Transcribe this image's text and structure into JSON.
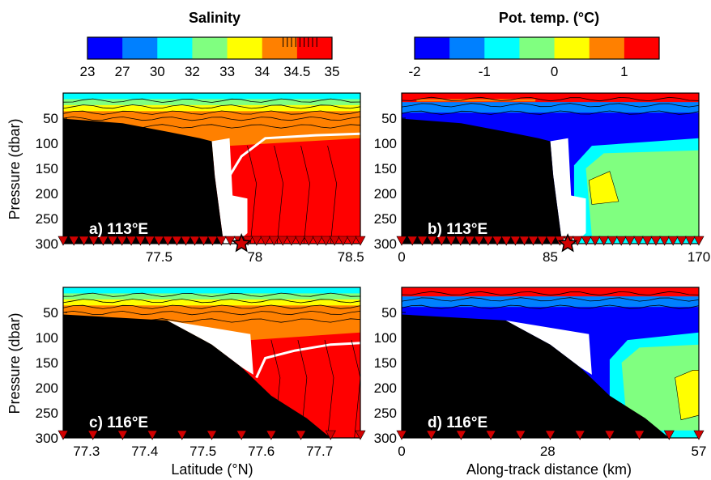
{
  "colorbars": [
    {
      "title": "Salinity",
      "levels": [
        "23",
        "27",
        "30",
        "32",
        "33",
        "34",
        "34.5",
        "35"
      ],
      "colors": [
        "#0000ff",
        "#0080ff",
        "#00ffff",
        "#80ff80",
        "#ffff00",
        "#ff8000",
        "#ff0000"
      ]
    },
    {
      "title": "Pot. temp. (°C)",
      "levels": [
        "-2",
        "-1",
        "0",
        "1"
      ],
      "colors": [
        "#0000ff",
        "#0080ff",
        "#00ffff",
        "#80ff80",
        "#ffff00",
        "#ff8000",
        "#ff0000"
      ]
    }
  ],
  "chart_data": [
    {
      "type": "heatmap",
      "panel_label": "a) 113°E",
      "variable": "Salinity",
      "xlabel": "",
      "ylabel": "Pressure (dbar)",
      "xlim": [
        77.0,
        78.55
      ],
      "xticks": [
        "77.5",
        "78",
        "78.5"
      ],
      "ylim": [
        300,
        0
      ],
      "yticks": [
        "50",
        "100",
        "150",
        "200",
        "250",
        "300"
      ],
      "station_count": 34,
      "star_x": 77.93
    },
    {
      "type": "heatmap",
      "panel_label": "b) 113°E",
      "variable": "Pot. temp.",
      "xlabel": "",
      "ylabel": "",
      "xlim": [
        0,
        170
      ],
      "xticks": [
        "0",
        "85",
        "170"
      ],
      "ylim": [
        300,
        0
      ],
      "yticks": [
        "50",
        "100",
        "150",
        "200",
        "250",
        "300"
      ],
      "station_count": 34,
      "star_x": 95
    },
    {
      "type": "heatmap",
      "panel_label": "c) 116°E",
      "variable": "Salinity",
      "xlabel": "Latitude (°N)",
      "ylabel": "Pressure (dbar)",
      "xlim": [
        77.26,
        77.77
      ],
      "xticks": [
        "77.3",
        "77.4",
        "77.5",
        "77.6",
        "77.7"
      ],
      "ylim": [
        300,
        0
      ],
      "yticks": [
        "50",
        "100",
        "150",
        "200",
        "250",
        "300"
      ],
      "station_count": 11
    },
    {
      "type": "heatmap",
      "panel_label": "d) 116°E",
      "variable": "Pot. temp.",
      "xlabel": "Along-track distance (km)",
      "ylabel": "",
      "xlim": [
        0,
        57
      ],
      "xticks": [
        "0",
        "28",
        "57"
      ],
      "ylim": [
        300,
        0
      ],
      "yticks": [
        "50",
        "100",
        "150",
        "200",
        "250",
        "300"
      ],
      "station_count": 11
    }
  ]
}
